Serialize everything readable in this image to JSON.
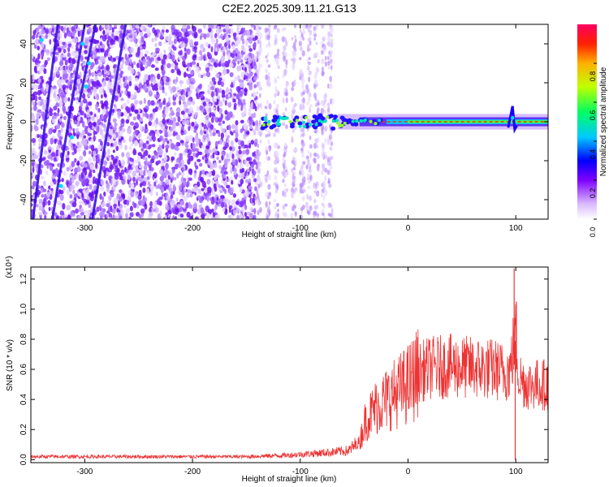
{
  "title": "C2E2.2025.309.11.21.G13",
  "chart_data": [
    {
      "type": "heatmap",
      "xlabel": "Height of straight line (km)",
      "ylabel": "Frequency (Hz)",
      "xlim": [
        -350,
        130
      ],
      "ylim": [
        -50,
        50
      ],
      "x_ticks": [
        -300,
        -200,
        -100,
        0,
        100
      ],
      "x_tick_labels": [
        "-300",
        "-200",
        "-100",
        "0",
        "100"
      ],
      "y_ticks": [
        -40,
        -20,
        0,
        20,
        40
      ],
      "y_tick_labels": [
        "-40",
        "-20",
        "0",
        "20",
        "40"
      ],
      "colorbar": {
        "label": "Normalized spectral amplitude",
        "range": [
          0,
          1
        ],
        "ticks": [
          0.0,
          0.2,
          0.4,
          0.6,
          0.8
        ],
        "tick_labels": [
          "0.0",
          "0.2",
          "0.4",
          "0.6",
          "0.8"
        ],
        "colors": [
          "#f8f0ff",
          "#7f00ff",
          "#0000ff",
          "#00e0ff",
          "#00ff40",
          "#ffff00",
          "#ff8000",
          "#ff0000",
          "#ff0080"
        ]
      },
      "features": {
        "noise_region_x": [
          -350,
          -140
        ],
        "sparse_noise_x": [
          -140,
          -70
        ],
        "carrier_line_freq": 0,
        "carrier_start_x": -135,
        "disturbance_x": 97
      }
    },
    {
      "type": "line",
      "xlabel": "Height of straight line (km)",
      "ylabel": "SNR (10 * v/v)",
      "scale_label": "(x10⁴)",
      "xlim": [
        -350,
        130
      ],
      "ylim": [
        -0.02,
        1.28
      ],
      "x_ticks": [
        -300,
        -200,
        -100,
        0,
        100
      ],
      "x_tick_labels": [
        "-300",
        "-200",
        "-100",
        "0",
        "100"
      ],
      "y_ticks": [
        0.0,
        0.2,
        0.4,
        0.6,
        0.8,
        1.0,
        1.2
      ],
      "y_tick_labels": [
        "0.0",
        "0.2",
        "0.4",
        "0.6",
        "0.8",
        "1.0",
        "1.2"
      ],
      "line_color": "#ee3333",
      "envelope": {
        "x": [
          -350,
          -150,
          -110,
          -70,
          -55,
          -45,
          -40,
          -30,
          -20,
          -10,
          0,
          10,
          20,
          40,
          60,
          80,
          90,
          95,
          98,
          100,
          103,
          110,
          130
        ],
        "y": [
          0.02,
          0.02,
          0.03,
          0.05,
          0.06,
          0.12,
          0.25,
          0.35,
          0.4,
          0.45,
          0.5,
          0.58,
          0.61,
          0.62,
          0.61,
          0.6,
          0.58,
          0.6,
          0.75,
          0.8,
          0.55,
          0.5,
          0.5
        ]
      },
      "spikes": [
        {
          "x": 98.5,
          "y": 1.27
        },
        {
          "x": 100.5,
          "y": 1.05
        },
        {
          "x": 99.5,
          "y": 0.0
        }
      ]
    }
  ]
}
